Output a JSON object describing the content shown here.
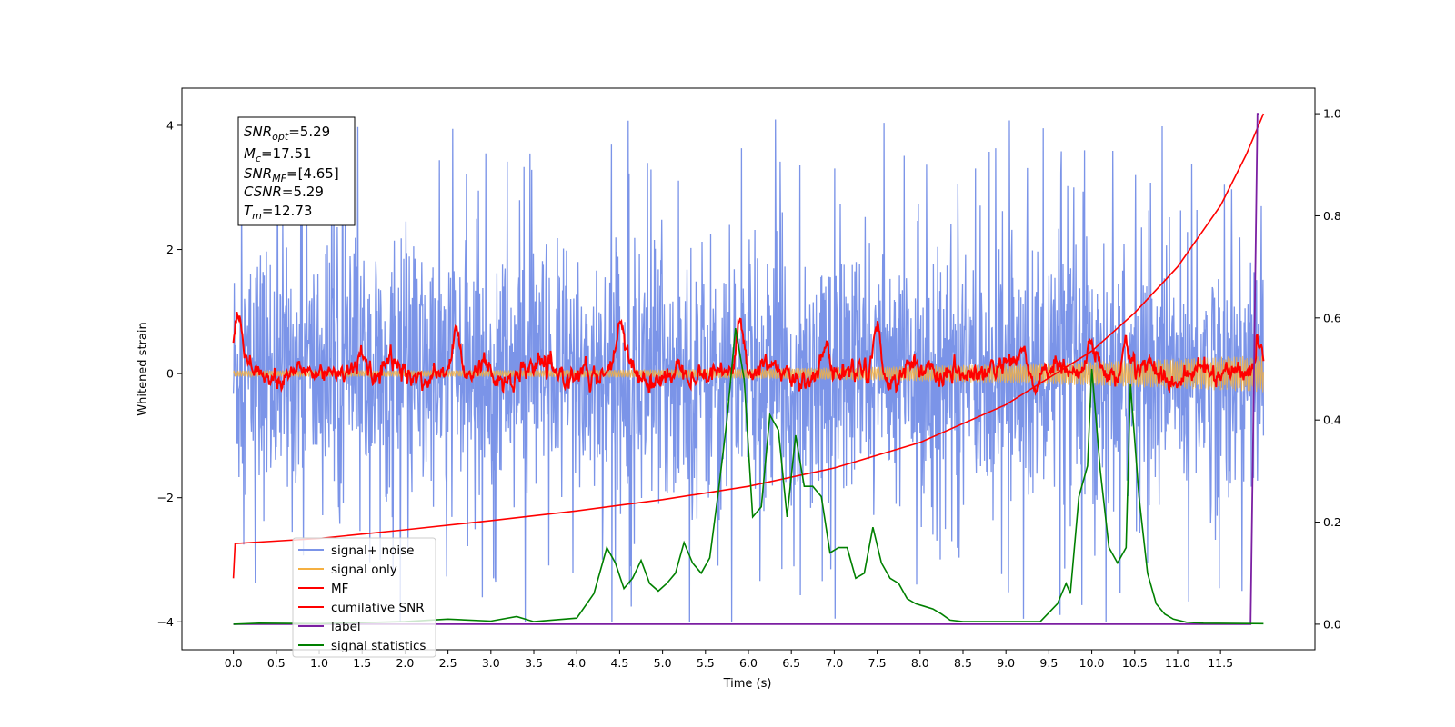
{
  "chart_data": {
    "type": "line",
    "xlabel": "Time (s)",
    "ylabel": "Whitened strain",
    "xlim": [
      -0.6,
      12.6
    ],
    "ylim": [
      -4.45,
      4.6
    ],
    "y2lim": [
      -0.05,
      1.05
    ],
    "x_ticks": [
      "0.0",
      "0.5",
      "1.0",
      "1.5",
      "2.0",
      "2.5",
      "3.0",
      "3.5",
      "4.0",
      "4.5",
      "5.0",
      "5.5",
      "6.0",
      "6.5",
      "7.0",
      "7.5",
      "8.0",
      "8.5",
      "9.0",
      "9.5",
      "10.0",
      "10.5",
      "11.0",
      "11.5"
    ],
    "y_ticks": [
      "4",
      "2",
      "0",
      "−2",
      "−4"
    ],
    "y2_ticks": [
      "1.0",
      "0.8",
      "0.6",
      "0.4",
      "0.2",
      "0.0"
    ],
    "grid": false,
    "legend_position": "lower-left",
    "info_box": {
      "snr_opt": "=5.29",
      "mc": "=17.51",
      "snr_mf": "=[4.65]",
      "csnr": "=5.29",
      "tm": "=12.73"
    },
    "series": [
      {
        "name": "signal+ noise",
        "axis": "left",
        "color": "#7b94e8",
        "description_values": "noise band roughly between -2.5 and 2.5 with spikes to about 4.1 and -4.0",
        "x_range": [
          0.0,
          12.0
        ]
      },
      {
        "name": "signal only",
        "axis": "left",
        "color": "#f5b041",
        "x_range": [
          0.0,
          12.0
        ],
        "amplitude_start": 0.05,
        "amplitude_end": 0.3
      },
      {
        "name": "MF",
        "axis": "left",
        "color": "#ff0000",
        "x_range": [
          0.0,
          12.0
        ],
        "peaks": [
          [
            0.05,
            0.9
          ],
          [
            1.5,
            0.5
          ],
          [
            2.6,
            0.65
          ],
          [
            4.5,
            0.6
          ],
          [
            5.9,
            1.0
          ],
          [
            6.9,
            0.35
          ],
          [
            7.5,
            0.8
          ],
          [
            9.2,
            0.5
          ],
          [
            10.0,
            0.55
          ],
          [
            10.4,
            0.5
          ],
          [
            11.95,
            0.6
          ]
        ]
      },
      {
        "name": "cumilative SNR",
        "axis": "right",
        "color": "#ff0000",
        "x": [
          0.0,
          0.02,
          1.0,
          2.0,
          3.0,
          4.0,
          5.0,
          6.0,
          7.0,
          8.0,
          9.0,
          10.0,
          10.5,
          11.0,
          11.5,
          11.8,
          12.0
        ],
        "y": [
          0.09,
          0.158,
          0.168,
          0.185,
          0.203,
          0.222,
          0.244,
          0.27,
          0.306,
          0.356,
          0.43,
          0.535,
          0.61,
          0.7,
          0.82,
          0.92,
          1.0
        ]
      },
      {
        "name": "label",
        "axis": "right",
        "color": "#7b1fa2",
        "x": [
          0.0,
          11.85,
          11.93,
          11.95
        ],
        "y": [
          0.0,
          0.0,
          1.0,
          1.0
        ]
      },
      {
        "name": "signal statistics",
        "axis": "right",
        "color": "#008000",
        "x": [
          0.0,
          0.3,
          1.0,
          2.0,
          2.5,
          3.0,
          3.3,
          3.5,
          4.0,
          4.2,
          4.35,
          4.45,
          4.55,
          4.65,
          4.75,
          4.85,
          4.95,
          5.05,
          5.15,
          5.25,
          5.35,
          5.45,
          5.55,
          5.65,
          5.75,
          5.85,
          5.95,
          6.05,
          6.15,
          6.25,
          6.35,
          6.45,
          6.55,
          6.65,
          6.75,
          6.85,
          6.95,
          7.05,
          7.15,
          7.25,
          7.35,
          7.45,
          7.55,
          7.65,
          7.75,
          7.85,
          7.95,
          8.05,
          8.15,
          8.25,
          8.35,
          8.5,
          9.0,
          9.4,
          9.6,
          9.7,
          9.75,
          9.85,
          9.95,
          10.0,
          10.1,
          10.2,
          10.3,
          10.4,
          10.45,
          10.55,
          10.65,
          10.75,
          10.85,
          10.95,
          11.1,
          11.3,
          12.0
        ],
        "y": [
          0.0,
          0.002,
          0.001,
          0.005,
          0.01,
          0.006,
          0.015,
          0.005,
          0.012,
          0.06,
          0.15,
          0.12,
          0.07,
          0.09,
          0.125,
          0.08,
          0.065,
          0.08,
          0.1,
          0.16,
          0.12,
          0.1,
          0.13,
          0.26,
          0.4,
          0.58,
          0.48,
          0.21,
          0.23,
          0.41,
          0.38,
          0.21,
          0.37,
          0.27,
          0.27,
          0.25,
          0.14,
          0.15,
          0.15,
          0.09,
          0.1,
          0.19,
          0.12,
          0.09,
          0.08,
          0.05,
          0.04,
          0.035,
          0.03,
          0.02,
          0.008,
          0.005,
          0.005,
          0.005,
          0.04,
          0.08,
          0.06,
          0.25,
          0.31,
          0.5,
          0.3,
          0.15,
          0.12,
          0.15,
          0.47,
          0.25,
          0.1,
          0.04,
          0.02,
          0.01,
          0.004,
          0.002,
          0.001
        ]
      }
    ]
  }
}
